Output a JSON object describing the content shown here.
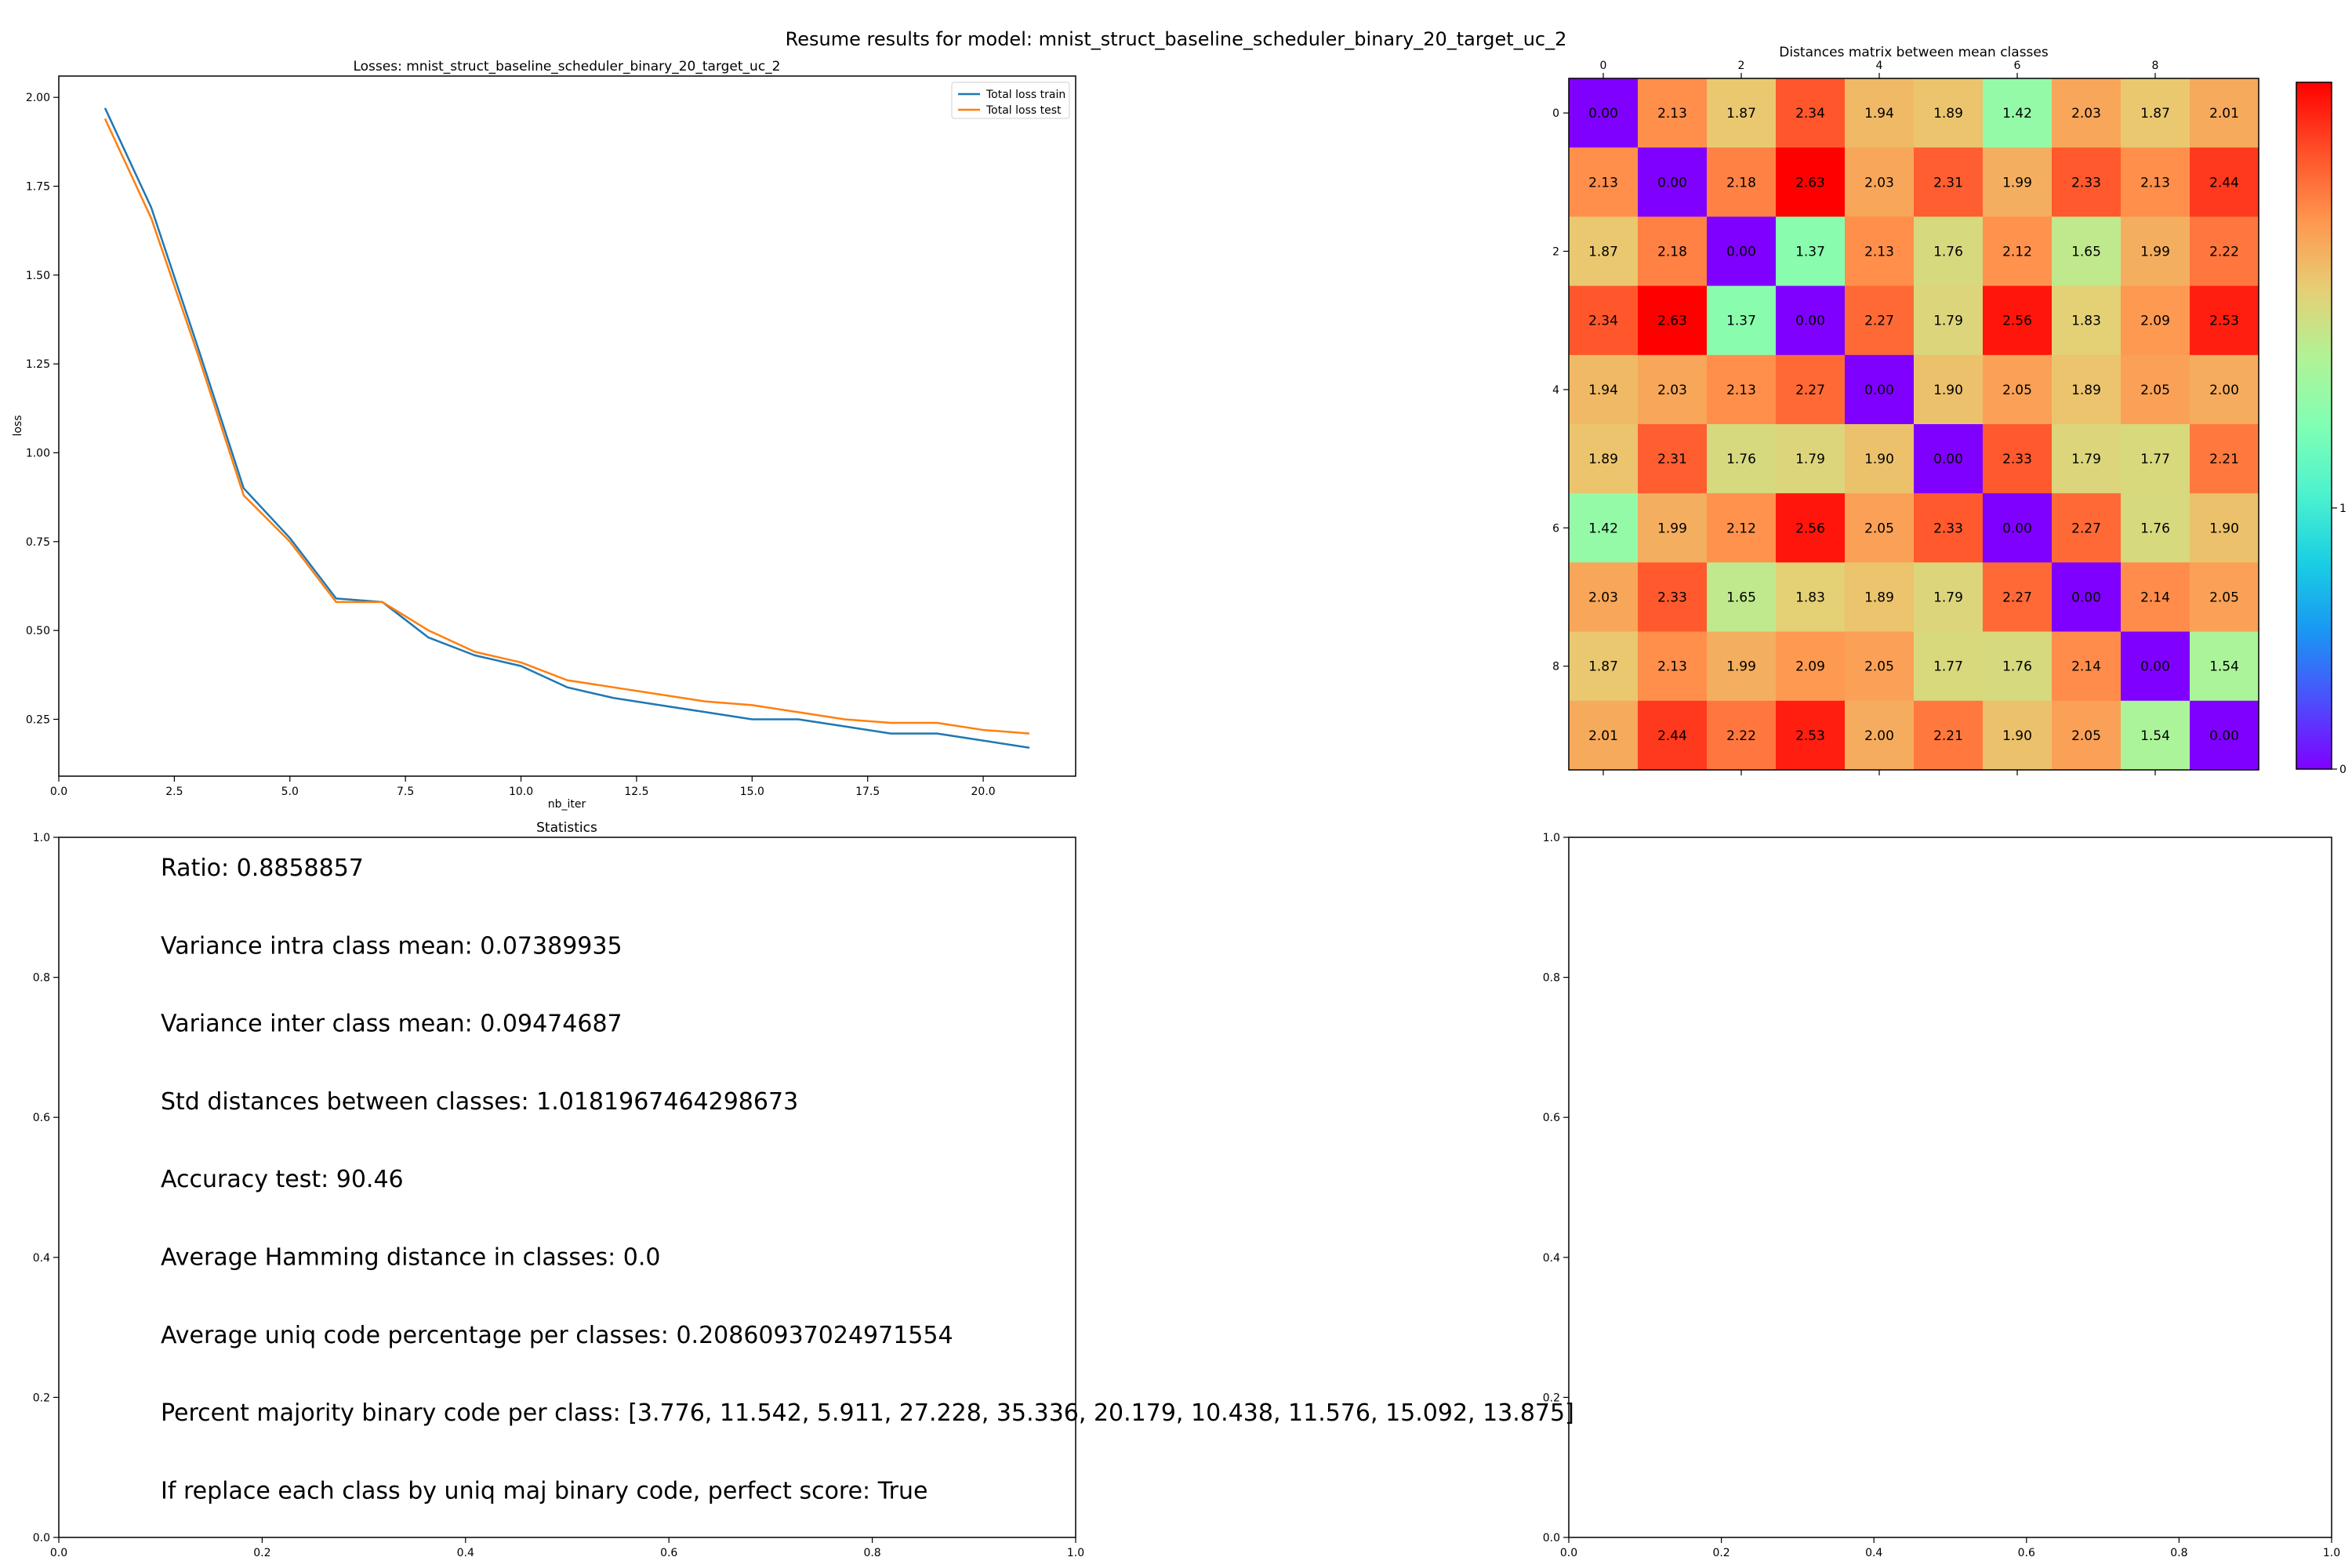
{
  "suptitle": "Resume results for model: mnist_struct_baseline_scheduler_binary_20_target_uc_2",
  "chart_data": [
    {
      "type": "line",
      "title": "Losses: mnist_struct_baseline_scheduler_binary_20_target_uc_2",
      "xlabel": "nb_iter",
      "ylabel": "loss",
      "xlim": [
        0,
        22
      ],
      "ylim": [
        0.09,
        2.06
      ],
      "xticks": [
        0.0,
        2.5,
        5.0,
        7.5,
        10.0,
        12.5,
        15.0,
        17.5,
        20.0
      ],
      "xtick_labels": [
        "0.0",
        "2.5",
        "5.0",
        "7.5",
        "10.0",
        "12.5",
        "15.0",
        "17.5",
        "20.0"
      ],
      "yticks": [
        0.25,
        0.5,
        0.75,
        1.0,
        1.25,
        1.5,
        1.75,
        2.0
      ],
      "ytick_labels": [
        "0.25",
        "0.50",
        "0.75",
        "1.00",
        "1.25",
        "1.50",
        "1.75",
        "2.00"
      ],
      "legend_position": "top-right",
      "x": [
        1,
        2,
        3,
        4,
        5,
        6,
        7,
        8,
        9,
        10,
        11,
        12,
        13,
        14,
        15,
        16,
        17,
        18,
        19,
        20,
        21
      ],
      "series": [
        {
          "name": "Total loss train",
          "color": "#1f77b4",
          "values": [
            1.97,
            1.69,
            1.3,
            0.9,
            0.76,
            0.59,
            0.58,
            0.48,
            0.43,
            0.4,
            0.34,
            0.31,
            0.29,
            0.27,
            0.25,
            0.25,
            0.23,
            0.21,
            0.21,
            0.19,
            0.17
          ]
        },
        {
          "name": "Total loss test",
          "color": "#ff7f0e",
          "values": [
            1.94,
            1.66,
            1.28,
            0.88,
            0.75,
            0.58,
            0.58,
            0.5,
            0.44,
            0.41,
            0.36,
            0.34,
            0.32,
            0.3,
            0.29,
            0.27,
            0.25,
            0.24,
            0.24,
            0.22,
            0.21
          ]
        }
      ]
    },
    {
      "type": "heatmap",
      "title": "Distances matrix between mean classes",
      "colormap": "rainbow",
      "xtick_labels": [
        "0",
        "2",
        "4",
        "6",
        "8"
      ],
      "ytick_labels": [
        "0",
        "2",
        "4",
        "6",
        "8"
      ],
      "tick_positions": [
        0,
        2,
        4,
        6,
        8
      ],
      "colorbar_ticks": [
        "0",
        "1"
      ],
      "vmin": 0,
      "vmax": 2.63,
      "matrix": [
        [
          "0.00",
          "2.13",
          "1.87",
          "2.34",
          "1.94",
          "1.89",
          "1.42",
          "2.03",
          "1.87",
          "2.01"
        ],
        [
          "2.13",
          "0.00",
          "2.18",
          "2.63",
          "2.03",
          "2.31",
          "1.99",
          "2.33",
          "2.13",
          "2.44"
        ],
        [
          "1.87",
          "2.18",
          "0.00",
          "1.37",
          "2.13",
          "1.76",
          "2.12",
          "1.65",
          "1.99",
          "2.22"
        ],
        [
          "2.34",
          "2.63",
          "1.37",
          "0.00",
          "2.27",
          "1.79",
          "2.56",
          "1.83",
          "2.09",
          "2.53"
        ],
        [
          "1.94",
          "2.03",
          "2.13",
          "2.27",
          "0.00",
          "1.90",
          "2.05",
          "1.89",
          "2.05",
          "2.00"
        ],
        [
          "1.89",
          "2.31",
          "1.76",
          "1.79",
          "1.90",
          "0.00",
          "2.33",
          "1.79",
          "1.77",
          "2.21"
        ],
        [
          "1.42",
          "1.99",
          "2.12",
          "2.56",
          "2.05",
          "2.33",
          "0.00",
          "2.27",
          "1.76",
          "1.90"
        ],
        [
          "2.03",
          "2.33",
          "1.65",
          "1.83",
          "1.89",
          "1.79",
          "2.27",
          "0.00",
          "2.14",
          "2.05"
        ],
        [
          "1.87",
          "2.13",
          "1.99",
          "2.09",
          "2.05",
          "1.77",
          "1.76",
          "2.14",
          "0.00",
          "1.54"
        ],
        [
          "2.01",
          "2.44",
          "2.22",
          "2.53",
          "2.00",
          "2.21",
          "1.90",
          "2.05",
          "1.54",
          "0.00"
        ]
      ]
    },
    {
      "type": "table",
      "title": "Statistics",
      "xticks": [
        "0.0",
        "0.2",
        "0.4",
        "0.6",
        "0.8",
        "1.0"
      ],
      "yticks": [
        "0.0",
        "0.2",
        "0.4",
        "0.6",
        "0.8",
        "1.0"
      ],
      "lines": [
        "Ratio: 0.8858857",
        "Variance intra class mean: 0.07389935",
        "Variance inter class mean: 0.09474687",
        "Std distances between classes: 1.0181967464298673",
        "Accuracy test: 90.46",
        "Average Hamming distance in classes: 0.0",
        "Average uniq code percentage per classes: 0.20860937024971554",
        "Percent majority binary code per class: [3.776, 11.542, 5.911, 27.228, 35.336, 20.179, 10.438, 11.576, 15.092, 13.875]",
        "If replace each class by uniq maj binary code, perfect score: True"
      ]
    },
    {
      "type": "table",
      "title": "",
      "xticks": [
        "0.0",
        "0.2",
        "0.4",
        "0.6",
        "0.8",
        "1.0"
      ],
      "yticks": [
        "0.0",
        "0.2",
        "0.4",
        "0.6",
        "0.8",
        "1.0"
      ],
      "lines": []
    }
  ]
}
